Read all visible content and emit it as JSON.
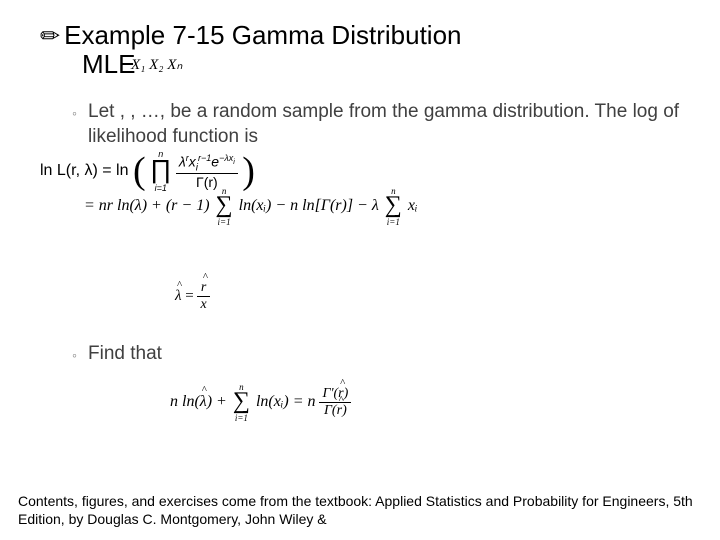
{
  "title": {
    "bullet": "✏",
    "line1": "Example 7-15 Gamma Distribution",
    "line2": "MLE",
    "vars": "X₁   X₂         Xₙ"
  },
  "body": {
    "sub_marker": "◦",
    "let_text": "Let       ,       , …,         be a random sample from the gamma distribution. The log of likelihood function is",
    "find_text": "Find that"
  },
  "formulas": {
    "logL_prefix": "ln L(r, λ) = ln",
    "prod_top": "n",
    "prod_bot": "i=1",
    "frac_num_a": "λ",
    "frac_num_b": "r",
    "frac_num_c": "x",
    "frac_num_d": "i",
    "frac_num_e": "r−1",
    "frac_num_f": "e",
    "frac_num_g": "−λx",
    "frac_num_h": "i",
    "frac_den": "Γ(r)",
    "line2_a": "= nr ln(λ) + (r − 1)",
    "line2_b": "ln(xᵢ) − n ln[Γ(r)] − λ",
    "line2_c": "xᵢ",
    "lambda_eq": "λ̂ =",
    "lambda_num": "r̂",
    "lambda_den": "x̄",
    "line3_a": "n ln(λ̂) +",
    "line3_b": "ln(xᵢ) = n",
    "line3_num": "Γ'(r̂)",
    "line3_den": "Γ(r̂)",
    "sum_top": "n",
    "sum_bot": "i=1"
  },
  "footer": {
    "text": "Contents, figures, and exercises come from the textbook: Applied Statistics and Probability for Engineers, 5th Edition, by Douglas C. Montgomery, John Wiley &"
  },
  "colors": {
    "text": "#000000",
    "subtext": "#404040",
    "marker": "#808080",
    "bg": "#ffffff"
  }
}
